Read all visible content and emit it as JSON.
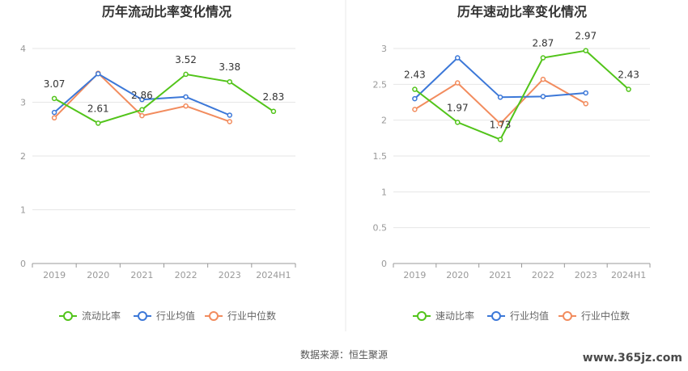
{
  "source_text": "数据来源：恒生聚源",
  "watermark": "www.365jz.com",
  "chart_data": [
    {
      "type": "line",
      "title": "历年流动比率变化情况",
      "categories": [
        "2019",
        "2020",
        "2021",
        "2022",
        "2023",
        "2024H1"
      ],
      "y_ticks": [
        "0",
        "1",
        "2",
        "3",
        "4"
      ],
      "ylim": [
        0,
        4
      ],
      "legend_position": "bottom",
      "series": [
        {
          "name": "流动比率",
          "color": "#52c41a",
          "values": [
            3.07,
            2.61,
            2.86,
            3.52,
            3.38,
            2.83
          ],
          "labels": [
            "3.07",
            "2.61",
            "2.86",
            "3.52",
            "3.38",
            "2.83"
          ]
        },
        {
          "name": "行业均值",
          "color": "#3c78d8",
          "values": [
            2.81,
            3.53,
            3.05,
            3.1,
            2.76,
            null
          ]
        },
        {
          "name": "行业中位数",
          "color": "#f28c5e",
          "values": [
            2.71,
            3.54,
            2.75,
            2.93,
            2.64,
            null
          ]
        }
      ]
    },
    {
      "type": "line",
      "title": "历年速动比率变化情况",
      "categories": [
        "2019",
        "2020",
        "2021",
        "2022",
        "2023",
        "2024H1"
      ],
      "y_ticks": [
        "0",
        "0.5",
        "1",
        "1.5",
        "2",
        "2.5",
        "3"
      ],
      "ylim": [
        0,
        3
      ],
      "legend_position": "bottom",
      "series": [
        {
          "name": "速动比率",
          "color": "#52c41a",
          "values": [
            2.43,
            1.97,
            1.73,
            2.87,
            2.97,
            2.43
          ],
          "labels": [
            "2.43",
            "1.97",
            "1.73",
            "2.87",
            "2.97",
            "2.43"
          ]
        },
        {
          "name": "行业均值",
          "color": "#3c78d8",
          "values": [
            2.3,
            2.87,
            2.32,
            2.33,
            2.38,
            null
          ]
        },
        {
          "name": "行业中位数",
          "color": "#f28c5e",
          "values": [
            2.15,
            2.52,
            1.95,
            2.57,
            2.23,
            null
          ]
        }
      ]
    }
  ]
}
